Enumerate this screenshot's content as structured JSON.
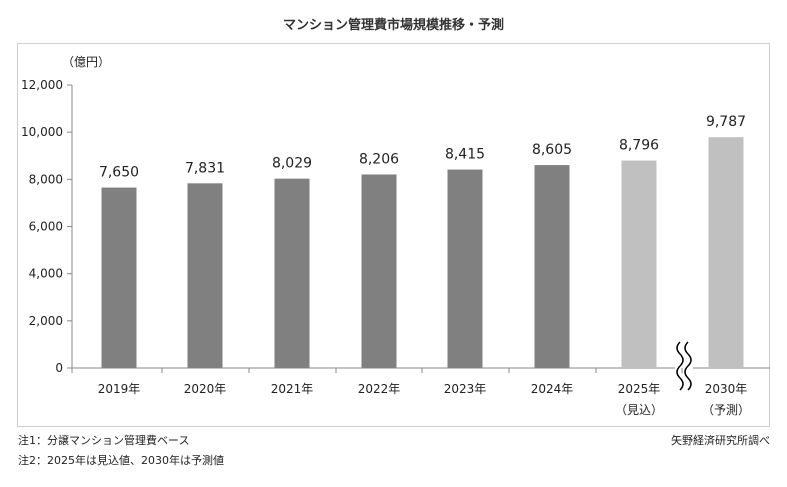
{
  "chart_data": {
    "type": "bar",
    "title": "マンション管理費市場規模推移・予測",
    "unit_label": "（億円）",
    "categories": [
      "2019年",
      "2020年",
      "2021年",
      "2022年",
      "2023年",
      "2024年",
      "2025年",
      "2030年"
    ],
    "category_sublabels": [
      "",
      "",
      "",
      "",
      "",
      "",
      "（見込）",
      "（予測）"
    ],
    "values": [
      7650,
      7831,
      8029,
      8206,
      8415,
      8605,
      8796,
      9787
    ],
    "value_labels": [
      "7,650",
      "7,831",
      "8,029",
      "8,206",
      "8,415",
      "8,605",
      "8,796",
      "9,787"
    ],
    "ylim": [
      0,
      12000
    ],
    "yticks": [
      0,
      2000,
      4000,
      6000,
      8000,
      10000,
      12000
    ],
    "ytick_labels": [
      "0",
      "2,000",
      "4,000",
      "6,000",
      "8,000",
      "10,000",
      "12,000"
    ],
    "grid": false,
    "axis_break_between": [
      "2025年",
      "2030年"
    ],
    "colors": {
      "actual": "#808080",
      "forecast": "#c0c0c0",
      "axis": "#888888"
    },
    "forecast_flags": [
      false,
      false,
      false,
      false,
      false,
      false,
      true,
      true
    ]
  },
  "notes": {
    "note1": "注1：分譲マンション管理費ベース",
    "note2": "注2：2025年は見込値、2030年は予測値",
    "source": "矢野経済研究所調べ"
  }
}
